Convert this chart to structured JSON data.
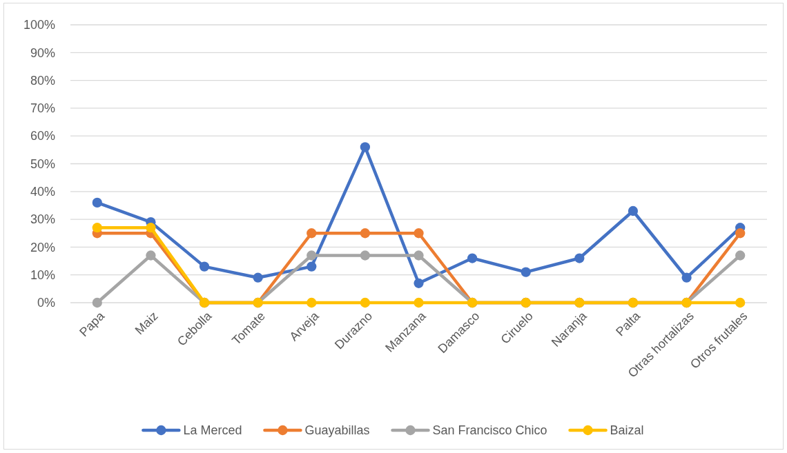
{
  "chart_data": {
    "type": "line",
    "categories": [
      "Papa",
      "Maiz",
      "Cebolla",
      "Tomate",
      "Arveja",
      "Durazno",
      "Manzana",
      "Damasco",
      "Ciruelo",
      "Naranja",
      "Palta",
      "Otras hortalizas",
      "Otros frutales"
    ],
    "series": [
      {
        "name": "La Merced",
        "color": "#4472c4",
        "values": [
          36,
          29,
          13,
          9,
          13,
          56,
          7,
          16,
          11,
          16,
          33,
          9,
          27
        ]
      },
      {
        "name": "Guayabillas",
        "color": "#ed7d31",
        "values": [
          25,
          25,
          0,
          0,
          25,
          25,
          25,
          0,
          0,
          0,
          0,
          0,
          25
        ]
      },
      {
        "name": "San Francisco Chico",
        "color": "#a5a5a5",
        "values": [
          0,
          17,
          0,
          0,
          17,
          17,
          17,
          0,
          0,
          0,
          0,
          0,
          17
        ]
      },
      {
        "name": "Baizal",
        "color": "#ffc000",
        "values": [
          27,
          27,
          0,
          0,
          0,
          0,
          0,
          0,
          0,
          0,
          0,
          0,
          0
        ]
      }
    ],
    "ylim": [
      0,
      100
    ],
    "yticks": [
      {
        "value": 0,
        "label": "0%"
      },
      {
        "value": 10,
        "label": "10%"
      },
      {
        "value": 20,
        "label": "20%"
      },
      {
        "value": 30,
        "label": "30%"
      },
      {
        "value": 40,
        "label": "40%"
      },
      {
        "value": 50,
        "label": "50%"
      },
      {
        "value": 60,
        "label": "60%"
      },
      {
        "value": 70,
        "label": "70%"
      },
      {
        "value": 80,
        "label": "80%"
      },
      {
        "value": 90,
        "label": "90%"
      },
      {
        "value": 100,
        "label": "100%"
      }
    ],
    "grid": "y",
    "legend": "bottom",
    "marker": "circle",
    "line_style": "solid"
  }
}
